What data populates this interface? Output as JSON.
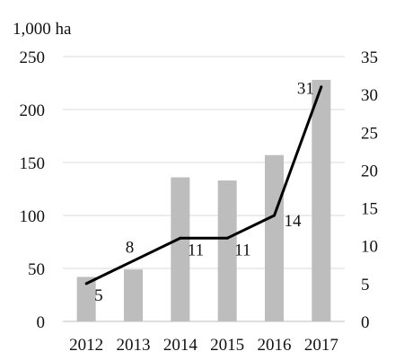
{
  "chart_data": {
    "type": "bar",
    "unit_label": "1,000 ha",
    "categories": [
      "2012",
      "2013",
      "2014",
      "2015",
      "2016",
      "2017"
    ],
    "series": [
      {
        "type": "bar",
        "axis": "left",
        "values": [
          42,
          49,
          136,
          133,
          157,
          228
        ],
        "color": "#bdbdbd"
      },
      {
        "type": "line",
        "axis": "right",
        "values": [
          5,
          8,
          11,
          11,
          14,
          31
        ],
        "data_labels": [
          "5",
          "8",
          "11",
          "11",
          "14",
          "31"
        ],
        "color": "#000000"
      }
    ],
    "y_left": {
      "ylim": [
        0,
        250
      ],
      "ticks": [
        0,
        50,
        100,
        150,
        200,
        250
      ],
      "tick_labels": [
        "0",
        "50",
        "100",
        "150",
        "200",
        "250"
      ]
    },
    "y_right": {
      "ylim": [
        0,
        35
      ],
      "ticks": [
        0,
        5,
        10,
        15,
        20,
        25,
        30,
        35
      ],
      "tick_labels": [
        "0",
        "5",
        "10",
        "15",
        "20",
        "25",
        "30",
        "35"
      ]
    },
    "grid": true,
    "legend": "none"
  }
}
